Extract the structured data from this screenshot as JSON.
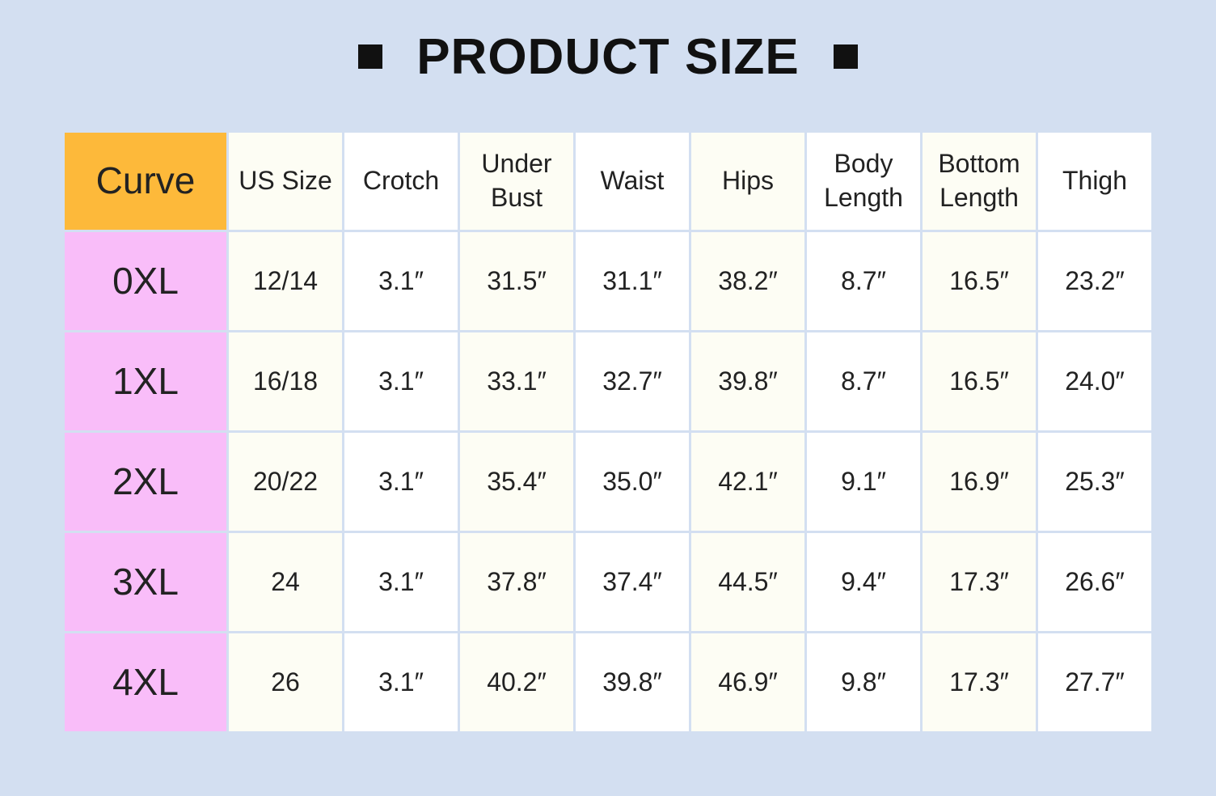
{
  "header": {
    "title": "PRODUCT SIZE"
  },
  "table": {
    "columns": [
      "Curve",
      "US Size",
      "Crotch",
      "Under Bust",
      "Waist",
      "Hips",
      "Body Length",
      "Bottom Length",
      "Thigh"
    ],
    "rows": [
      [
        "0XL",
        "12/14",
        "3.1″",
        "31.5″",
        "31.1″",
        "38.2″",
        "8.7″",
        "16.5″",
        "23.2″"
      ],
      [
        "1XL",
        "16/18",
        "3.1″",
        "33.1″",
        "32.7″",
        "39.8″",
        "8.7″",
        "16.5″",
        "24.0″"
      ],
      [
        "2XL",
        "20/22",
        "3.1″",
        "35.4″",
        "35.0″",
        "42.1″",
        "9.1″",
        "16.9″",
        "25.3″"
      ],
      [
        "3XL",
        "24",
        "3.1″",
        "37.8″",
        "37.4″",
        "44.5″",
        "9.4″",
        "17.3″",
        "26.6″"
      ],
      [
        "4XL",
        "26",
        "3.1″",
        "40.2″",
        "39.8″",
        "46.9″",
        "9.8″",
        "17.3″",
        "27.7″"
      ]
    ]
  }
}
